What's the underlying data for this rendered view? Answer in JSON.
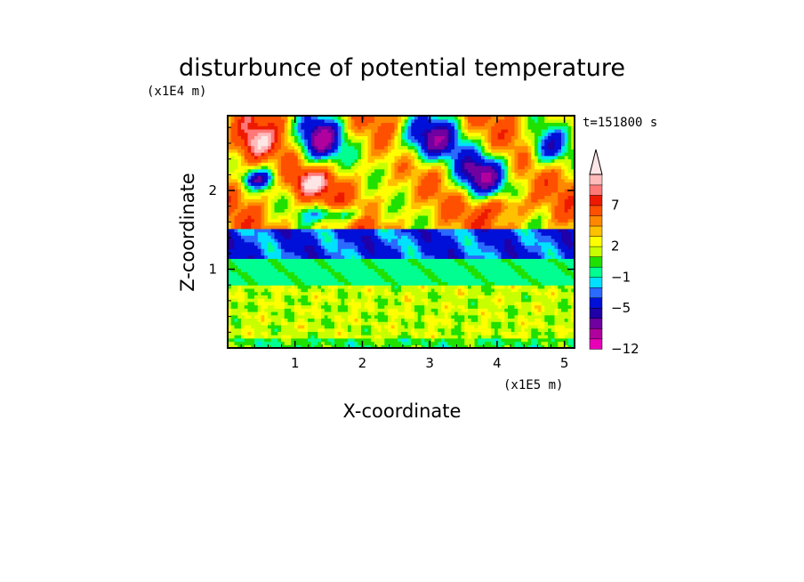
{
  "chart_data": {
    "type": "heatmap",
    "title": "disturbunce of potential temperature",
    "xlabel": "X-coordinate",
    "ylabel": "Z-coordinate",
    "x_scale_label": "(x1E5 m)",
    "y_scale_label": "(x1E4 m)",
    "time_label": "t=151800 s",
    "xlim": [
      0,
      5.15
    ],
    "ylim": [
      0,
      2.95
    ],
    "x_ticks": [
      1,
      2,
      3,
      4,
      5
    ],
    "x_tick_labels": [
      "1",
      "2",
      "3",
      "4",
      "5"
    ],
    "y_ticks": [
      1,
      2
    ],
    "y_tick_labels": [
      "1",
      "2"
    ],
    "colorbar": {
      "levels": [
        -12,
        -10,
        -8,
        -6,
        -5,
        -3,
        -2,
        -1,
        0,
        1,
        2,
        3,
        4,
        5,
        7,
        8,
        9,
        10
      ],
      "labels": [
        "7",
        "2",
        "−1",
        "−5",
        "−12"
      ],
      "label_levels": [
        7,
        2,
        -1,
        -5,
        -12
      ],
      "extend_top": true,
      "colors": [
        "#e800b8",
        "#b0009e",
        "#7000a0",
        "#2000a8",
        "#0010d8",
        "#2a6aff",
        "#00e0ff",
        "#00ff90",
        "#20e000",
        "#c8ff00",
        "#ffff00",
        "#ffc000",
        "#ff8800",
        "#ff5000",
        "#ee1a00",
        "#ff7878",
        "#ffbaba"
      ]
    },
    "field_bands": [
      {
        "z_range": [
          0.0,
          0.8
        ],
        "value_range": [
          0.5,
          3
        ],
        "dominant": "green-yellow"
      },
      {
        "z_range": [
          0.8,
          1.15
        ],
        "value_range": [
          -1,
          0
        ],
        "dominant": "cyan"
      },
      {
        "z_range": [
          1.15,
          1.5
        ],
        "value_range": [
          -5,
          -2
        ],
        "dominant": "blue"
      },
      {
        "z_range": [
          1.5,
          2.95
        ],
        "value_range": [
          -8,
          9
        ],
        "dominant": "orange-red with blue cells"
      }
    ]
  }
}
